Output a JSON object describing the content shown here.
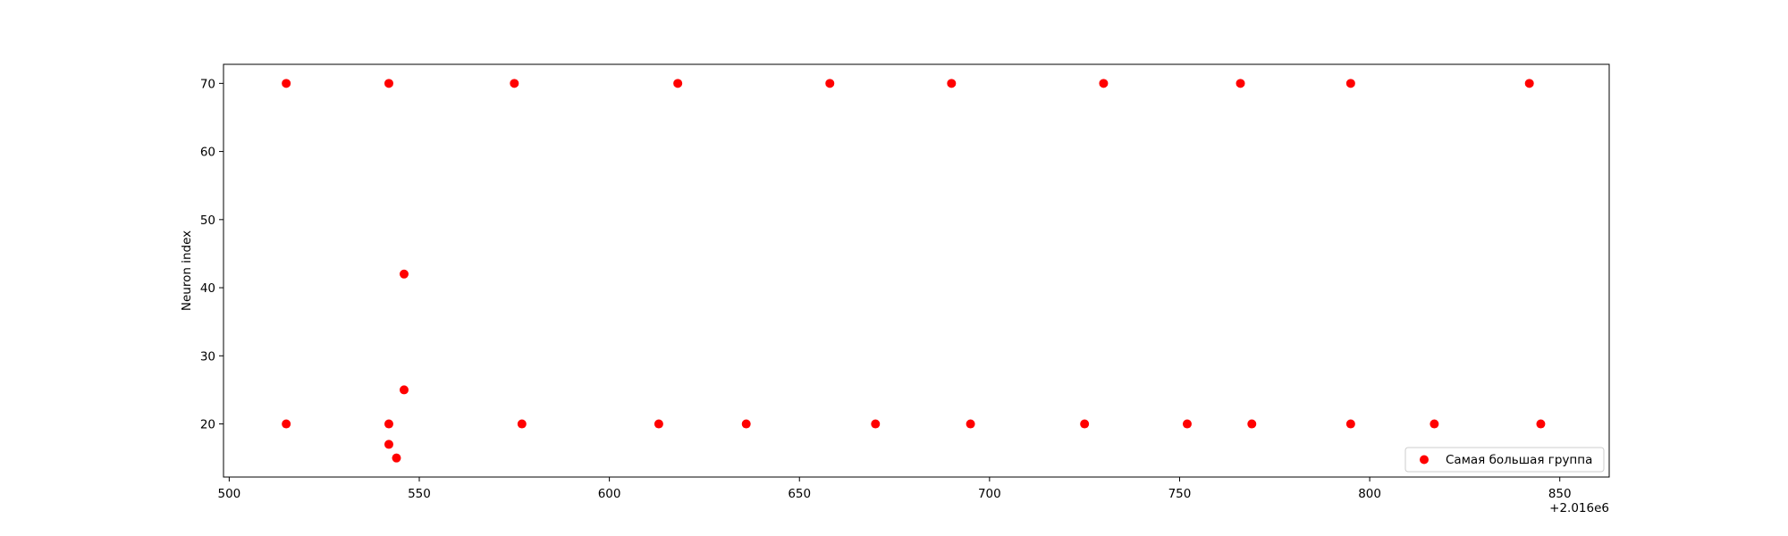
{
  "chart_data": {
    "type": "scatter",
    "title": "",
    "xlabel": "",
    "ylabel": "Neuron index",
    "x_offset_text": "+2.016e6",
    "xlim": [
      2016498.5,
      2016863
    ],
    "ylim": [
      12.2,
      72.8
    ],
    "xticks": [
      500,
      550,
      600,
      650,
      700,
      750,
      800,
      850
    ],
    "yticks": [
      20,
      30,
      40,
      50,
      60,
      70
    ],
    "grid": false,
    "legend_position": "lower right",
    "marker_color": "#ff0000",
    "series": [
      {
        "name": "Самая большая группа",
        "points": [
          {
            "x": 2016515,
            "y": 70
          },
          {
            "x": 2016542,
            "y": 70
          },
          {
            "x": 2016575,
            "y": 70
          },
          {
            "x": 2016618,
            "y": 70
          },
          {
            "x": 2016658,
            "y": 70
          },
          {
            "x": 2016690,
            "y": 70
          },
          {
            "x": 2016730,
            "y": 70
          },
          {
            "x": 2016766,
            "y": 70
          },
          {
            "x": 2016795,
            "y": 70
          },
          {
            "x": 2016842,
            "y": 70
          },
          {
            "x": 2016546,
            "y": 42
          },
          {
            "x": 2016546,
            "y": 25
          },
          {
            "x": 2016515,
            "y": 20
          },
          {
            "x": 2016542,
            "y": 20
          },
          {
            "x": 2016577,
            "y": 20
          },
          {
            "x": 2016613,
            "y": 20
          },
          {
            "x": 2016636,
            "y": 20
          },
          {
            "x": 2016670,
            "y": 20
          },
          {
            "x": 2016695,
            "y": 20
          },
          {
            "x": 2016725,
            "y": 20
          },
          {
            "x": 2016752,
            "y": 20
          },
          {
            "x": 2016769,
            "y": 20
          },
          {
            "x": 2016795,
            "y": 20
          },
          {
            "x": 2016817,
            "y": 20
          },
          {
            "x": 2016845,
            "y": 20
          },
          {
            "x": 2016542,
            "y": 17
          },
          {
            "x": 2016544,
            "y": 15
          }
        ]
      }
    ]
  }
}
